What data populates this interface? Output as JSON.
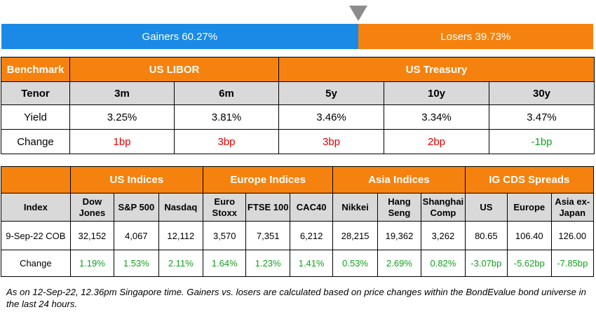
{
  "market_breadth": {
    "gainers_label": "Gainers 60.27%",
    "losers_label": "Losers 39.73%",
    "gainers_pct": 60.27,
    "losers_pct": 39.73,
    "gainers_color": "#1a8ae6",
    "losers_color": "#f5820f",
    "pointer_icon": "triangle-down-icon"
  },
  "rates_table": {
    "headers": {
      "benchmark": "Benchmark",
      "us_libor": "US LIBOR",
      "us_treasury": "US Treasury"
    },
    "tenor": {
      "label": "Tenor",
      "values": [
        "3m",
        "6m",
        "5y",
        "10y",
        "30y"
      ]
    },
    "yield": {
      "label": "Yield",
      "values": [
        "3.25%",
        "3.81%",
        "3.46%",
        "3.34%",
        "3.47%"
      ]
    },
    "change": {
      "label": "Change",
      "values": [
        "1bp",
        "3bp",
        "3bp",
        "2bp",
        "-1bp"
      ]
    }
  },
  "indices_table": {
    "groups": {
      "us": "US Indices",
      "europe": "Europe Indices",
      "asia": "Asia Indices",
      "ig_cds": "IG CDS Spreads"
    },
    "index_label": "Index",
    "names": [
      [
        "Dow",
        "Jones"
      ],
      [
        "S&P 500"
      ],
      [
        "Nasdaq"
      ],
      [
        "Euro",
        "Stoxx"
      ],
      [
        "FTSE 100"
      ],
      [
        "CAC40"
      ],
      [
        "Nikkei"
      ],
      [
        "Hang",
        "Seng"
      ],
      [
        "Shanghai",
        "Comp"
      ],
      [
        "US"
      ],
      [
        "Europe"
      ],
      [
        "Asia ex-",
        "Japan"
      ]
    ],
    "values_label": "9-Sep-22 COB",
    "values": [
      "32,152",
      "4,067",
      "12,112",
      "3,570",
      "7,351",
      "6,212",
      "28,215",
      "19,362",
      "3,262",
      "80.65",
      "106.40",
      "126.00"
    ],
    "change_label": "Change",
    "changes": [
      "1.19%",
      "1.53%",
      "2.11%",
      "1.64%",
      "1.23%",
      "1.41%",
      "0.53%",
      "2.69%",
      "0.82%",
      "-3.07bp",
      "-5.62bp",
      "-7.85bp"
    ]
  },
  "footnote": "As on 12-Sep-22, 12.36pm Singapore time. Gainers vs. losers are calculated based on price changes within the BondEvalue bond universe in the last 24 hours."
}
